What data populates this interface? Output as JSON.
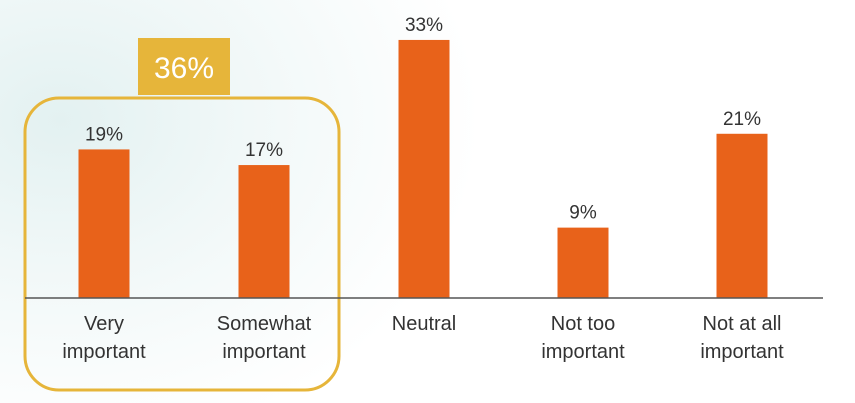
{
  "chart_data": {
    "type": "bar",
    "categories": [
      [
        "Very",
        "important"
      ],
      [
        "Somewhat",
        "important"
      ],
      [
        "Neutral"
      ],
      [
        "Not too",
        "important"
      ],
      [
        "Not at all",
        "important"
      ]
    ],
    "values": [
      19,
      17,
      33,
      9,
      21
    ],
    "value_labels": [
      "19%",
      "17%",
      "33%",
      "9%",
      "21%"
    ],
    "unit": "%",
    "ylim": [
      0,
      35
    ],
    "grid": false,
    "legend": "none",
    "bar_color": "#e8621a",
    "axis_color": "#555555",
    "group_highlight": {
      "label": "36%",
      "covers": [
        0,
        1
      ],
      "border_color": "#e6b53a",
      "label_bg_color": "#e6b53a"
    }
  }
}
